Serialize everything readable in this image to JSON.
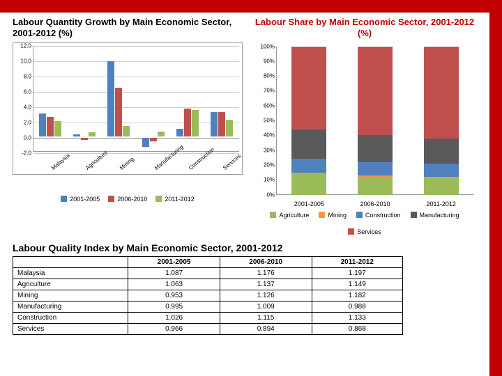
{
  "palette": {
    "series1": "#4f81bd",
    "series2": "#c0504d",
    "series3": "#9bbb59",
    "agri": "#9bbb59",
    "mining": "#f79646",
    "constr": "#4f81bd",
    "manuf": "#595959",
    "serv": "#c0504d",
    "accent": "#c00000"
  },
  "grouped": {
    "title": "Labour Quantity Growth by Main Economic Sector, 2001-2012 (%)",
    "ymin": -2.0,
    "ymax": 12.0,
    "ystep": 2.0,
    "categories": [
      "Malaysia",
      "Agriculture",
      "Mining",
      "Manufacturing",
      "Construction",
      "Services"
    ],
    "series": [
      {
        "label": "2001-2005",
        "color": "#4f81bd",
        "values": [
          3.0,
          0.2,
          9.8,
          -1.2,
          1.0,
          3.1
        ]
      },
      {
        "label": "2006-2010",
        "color": "#c0504d",
        "values": [
          2.5,
          -0.3,
          6.3,
          -0.5,
          3.6,
          3.1
        ]
      },
      {
        "label": "2011-2012",
        "color": "#9bbb59",
        "values": [
          2.0,
          0.5,
          1.3,
          0.6,
          3.4,
          2.1
        ]
      }
    ]
  },
  "stacked": {
    "title": "Labour Share by Main Economic Sector,  2001-2012 (%)",
    "ymax": 100,
    "ystep": 10,
    "periods": [
      "2001-2005",
      "2006-2010",
      "2011-2012"
    ],
    "layers": [
      {
        "label": "Agriculture",
        "color": "#9bbb59",
        "values": [
          14,
          12,
          11
        ]
      },
      {
        "label": "Mining",
        "color": "#f79646",
        "values": [
          1,
          1,
          1
        ]
      },
      {
        "label": "Construction",
        "color": "#4f81bd",
        "values": [
          9,
          9,
          9
        ]
      },
      {
        "label": "Manufacturing",
        "color": "#595959",
        "values": [
          20,
          18,
          17
        ]
      },
      {
        "label": "Services",
        "color": "#c0504d",
        "values": [
          56,
          60,
          62
        ]
      }
    ]
  },
  "table": {
    "title": "Labour Quality Index by Main Economic Sector, 2001-2012",
    "columns": [
      "",
      "2001-2005",
      "2006-2010",
      "2011-2012"
    ],
    "rows": [
      [
        "Malaysia",
        "1.087",
        "1.176",
        "1.197"
      ],
      [
        "Agriculture",
        "1.063",
        "1.137",
        "1.149"
      ],
      [
        "Mining",
        "0.953",
        "1.126",
        "1.182"
      ],
      [
        "Manufacturing",
        "0.995",
        "1.009",
        "0.988"
      ],
      [
        "Construction",
        "1.026",
        "1.115",
        "1.133"
      ],
      [
        "Services",
        "0.966",
        "0.894",
        "0.868"
      ]
    ]
  }
}
